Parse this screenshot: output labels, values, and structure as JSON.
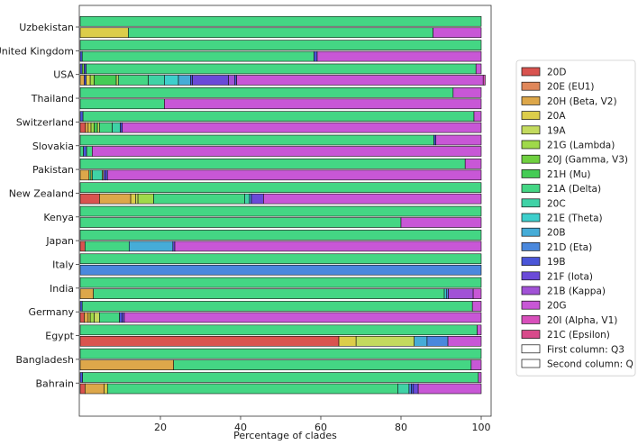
{
  "chart_data": {
    "type": "bar",
    "orientation": "horizontal-stacked",
    "title": "",
    "xlabel": "Percentage of clades",
    "ylabel": "",
    "xlim": [
      0,
      100
    ],
    "xticks": [
      20,
      40,
      60,
      80,
      100
    ],
    "grid": false,
    "legend_position": "right",
    "legend": [
      {
        "name": "20D",
        "color": "#d9534f"
      },
      {
        "name": "20E (EU1)",
        "color": "#e0875a"
      },
      {
        "name": "20H (Beta, V2)",
        "color": "#dda74a"
      },
      {
        "name": "20A",
        "color": "#dccd4a"
      },
      {
        "name": "19A",
        "color": "#c3da5e"
      },
      {
        "name": "21G (Lambda)",
        "color": "#9fd94a"
      },
      {
        "name": "20J (Gamma, V3)",
        "color": "#6fd040"
      },
      {
        "name": "21H (Mu)",
        "color": "#44cc55"
      },
      {
        "name": "21A (Delta)",
        "color": "#44d684"
      },
      {
        "name": "20C",
        "color": "#3fd2a6"
      },
      {
        "name": "21E (Theta)",
        "color": "#3dcfcc"
      },
      {
        "name": "20B",
        "color": "#46acd7"
      },
      {
        "name": "21D (Eta)",
        "color": "#4a88dd"
      },
      {
        "name": "19B",
        "color": "#4a55d8"
      },
      {
        "name": "21F (Iota)",
        "color": "#6a4ad8"
      },
      {
        "name": "21B (Kappa)",
        "color": "#a152d6"
      },
      {
        "name": "20G",
        "color": "#c857d6"
      },
      {
        "name": "20I (Alpha, V1)",
        "color": "#d84fbb"
      },
      {
        "name": "21C (Epsilon)",
        "color": "#d84a8b"
      },
      {
        "name": "First column: Q3",
        "color": "#ffffff"
      },
      {
        "name": "Second column: Q",
        "color": "#ffffff"
      }
    ],
    "categories": [
      "Uzbekistan",
      "United Kingdom",
      "USA",
      "Thailand",
      "Switzerland",
      "Slovakia",
      "Pakistan",
      "New Zealand",
      "Kenya",
      "Japan",
      "Italy",
      "India",
      "Germany",
      "Egypt",
      "Bangladesh",
      "Bahrain"
    ],
    "series": [
      {
        "name": "Uzbekistan",
        "first": [
          [
            "21A (Delta)",
            100
          ]
        ],
        "second": [
          [
            "20A",
            12
          ],
          [
            "21A (Delta)",
            76
          ],
          [
            "20G",
            12
          ]
        ]
      },
      {
        "name": "United Kingdom",
        "first": [
          [
            "21A (Delta)",
            100
          ]
        ],
        "second": [
          [
            "19B",
            0.5
          ],
          [
            "21A (Delta)",
            57.8
          ],
          [
            "19B",
            0.8
          ],
          [
            "20G",
            40.9
          ]
        ]
      },
      {
        "name": "USA",
        "first": [
          [
            "19B",
            0.5
          ],
          [
            "20J (Gamma, V3)",
            0.5
          ],
          [
            "19B",
            0.5
          ],
          [
            "21A (Delta)",
            97.2
          ],
          [
            "20G",
            1.3
          ]
        ],
        "second": [
          [
            "20H (Beta, V2)",
            1
          ],
          [
            "19B",
            0.5
          ],
          [
            "20A",
            1
          ],
          [
            "21G (Lambda)",
            1
          ],
          [
            "21H (Mu)",
            5.5
          ],
          [
            "19A",
            0.5
          ],
          [
            "21A (Delta)",
            7.5
          ],
          [
            "20C",
            4
          ],
          [
            "21E (Theta)",
            3.5
          ],
          [
            "20B",
            3
          ],
          [
            "19B",
            0.5
          ],
          [
            "21F (Iota)",
            9
          ],
          [
            "21B (Kappa)",
            1.5
          ],
          [
            "19B",
            0.5
          ],
          [
            "20G",
            61.5
          ],
          [
            "20I (Alpha, V1)",
            0.5
          ]
        ]
      },
      {
        "name": "Thailand",
        "first": [
          [
            "21A (Delta)",
            93
          ],
          [
            "20G",
            7
          ]
        ],
        "second": [
          [
            "21A (Delta)",
            21
          ],
          [
            "20G",
            79
          ]
        ]
      },
      {
        "name": "Switzerland",
        "first": [
          [
            "19B",
            0.7
          ],
          [
            "21A (Delta)",
            97.5
          ],
          [
            "20G",
            1.8
          ]
        ],
        "second": [
          [
            "20D",
            1.3
          ],
          [
            "20H (Beta, V2)",
            0.7
          ],
          [
            "20A",
            0.7
          ],
          [
            "21G (Lambda)",
            0.8
          ],
          [
            "21H (Mu)",
            0.8
          ],
          [
            "19A",
            0.5
          ],
          [
            "21A (Delta)",
            3.2
          ],
          [
            "20C",
            2
          ],
          [
            "19B",
            0.5
          ],
          [
            "20G",
            89.5
          ]
        ]
      },
      {
        "name": "Slovakia",
        "first": [
          [
            "21A (Delta)",
            88.2
          ],
          [
            "19B",
            0.5
          ],
          [
            "20G",
            11.3
          ]
        ],
        "second": [
          [
            "21A (Delta)",
            0.8
          ],
          [
            "19B",
            0.8
          ],
          [
            "21A (Delta)",
            1.4
          ],
          [
            "20G",
            97
          ]
        ]
      },
      {
        "name": "Pakistan",
        "first": [
          [
            "21A (Delta)",
            96
          ],
          [
            "20G",
            4
          ]
        ],
        "second": [
          [
            "20H (Beta, V2)",
            2.2
          ],
          [
            "21A (Delta)",
            0.5
          ],
          [
            "20A",
            0.3
          ],
          [
            "20C",
            2.5
          ],
          [
            "19A",
            0.3
          ],
          [
            "21F (Iota)",
            0.5
          ],
          [
            "19B",
            0.5
          ],
          [
            "20G",
            93.2
          ]
        ]
      },
      {
        "name": "New Zealand",
        "first": [
          [
            "21A (Delta)",
            100
          ]
        ],
        "second": [
          [
            "20D",
            4.8
          ],
          [
            "20H (Beta, V2)",
            7.8
          ],
          [
            "20A",
            1.2
          ],
          [
            "19A",
            0.6
          ],
          [
            "21G (Lambda)",
            3.9
          ],
          [
            "21A (Delta)",
            22.7
          ],
          [
            "20C",
            1.2
          ],
          [
            "21D (Eta)",
            0.5
          ],
          [
            "21F (Iota)",
            3
          ],
          [
            "20G",
            54.3
          ]
        ]
      },
      {
        "name": "Kenya",
        "first": [
          [
            "21A (Delta)",
            100
          ]
        ],
        "second": [
          [
            "21A (Delta)",
            80
          ],
          [
            "20G",
            20
          ]
        ]
      },
      {
        "name": "Japan",
        "first": [
          [
            "21A (Delta)",
            100
          ]
        ],
        "second": [
          [
            "20D",
            1.2
          ],
          [
            "21A (Delta)",
            11
          ],
          [
            "20B",
            10.9
          ],
          [
            "21F (Iota)",
            0.5
          ],
          [
            "20G",
            76.4
          ]
        ]
      },
      {
        "name": "Italy",
        "first": [
          [
            "21A (Delta)",
            100
          ]
        ],
        "second": [
          [
            "21D (Eta)",
            100
          ]
        ]
      },
      {
        "name": "India",
        "first": [
          [
            "21A (Delta)",
            100
          ]
        ],
        "second": [
          [
            "20H (Beta, V2)",
            3.3
          ],
          [
            "21A (Delta)",
            87.5
          ],
          [
            "21E (Theta)",
            0.5
          ],
          [
            "21D (Eta)",
            0.5
          ],
          [
            "21B (Kappa)",
            6.2
          ],
          [
            "20G",
            2
          ]
        ]
      },
      {
        "name": "Germany",
        "first": [
          [
            "19B",
            0.5
          ],
          [
            "21A (Delta)",
            97.3
          ],
          [
            "20G",
            2.2
          ]
        ],
        "second": [
          [
            "20D",
            1
          ],
          [
            "20H (Beta, V2)",
            1
          ],
          [
            "20A",
            0.5
          ],
          [
            "21G (Lambda)",
            1
          ],
          [
            "19A",
            1.3
          ],
          [
            "21A (Delta)",
            5
          ],
          [
            "19B",
            0.7
          ],
          [
            "21F (Iota)",
            0.5
          ],
          [
            "20G",
            89
          ]
        ]
      },
      {
        "name": "Egypt",
        "first": [
          [
            "21A (Delta)",
            99
          ],
          [
            "20G",
            1
          ]
        ],
        "second": [
          [
            "20D",
            64.5
          ],
          [
            "20A",
            4.3
          ],
          [
            "19A",
            14.5
          ],
          [
            "20B",
            3.2
          ],
          [
            "21D (Eta)",
            5.2
          ],
          [
            "20G",
            8.3
          ]
        ]
      },
      {
        "name": "Bangladesh",
        "first": [
          [
            "21A (Delta)",
            100
          ]
        ],
        "second": [
          [
            "20H (Beta, V2)",
            23.3
          ],
          [
            "21A (Delta)",
            74.2
          ],
          [
            "20G",
            2.5
          ]
        ]
      },
      {
        "name": "Bahrain",
        "first": [
          [
            "19B",
            0.6
          ],
          [
            "21A (Delta)",
            98.7
          ],
          [
            "20G",
            0.7
          ]
        ],
        "second": [
          [
            "20D",
            1.2
          ],
          [
            "20H (Beta, V2)",
            4.8
          ],
          [
            "20A",
            0.8
          ],
          [
            "21A (Delta)",
            72.4
          ],
          [
            "20C",
            2.8
          ],
          [
            "21D (Eta)",
            0.6
          ],
          [
            "19B",
            0.5
          ],
          [
            "21F (Iota)",
            1.2
          ],
          [
            "20G",
            15.7
          ]
        ]
      }
    ]
  }
}
